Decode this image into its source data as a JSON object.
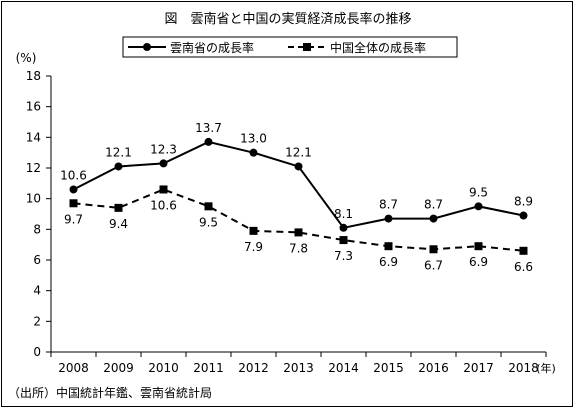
{
  "title": "図　雲南省と中国の実質経済成長率の推移",
  "source": "（出所）中国統計年鑑、雲南省統計局",
  "chart_data": {
    "type": "line",
    "title": "図　雲南省と中国の実質経済成長率の推移",
    "ylabel": "(%)",
    "xlabel": "",
    "x_unit_label": "(年)",
    "categories": [
      "2008",
      "2009",
      "2010",
      "2011",
      "2012",
      "2013",
      "2014",
      "2015",
      "2016",
      "2017",
      "2018"
    ],
    "yticks": [
      0,
      2,
      4,
      6,
      8,
      10,
      12,
      14,
      16,
      18
    ],
    "ylim": [
      0,
      18
    ],
    "grid": false,
    "legend_position": "top",
    "series": [
      {
        "name": "雲南省の成長率",
        "style": "solid-circle",
        "values": [
          10.6,
          12.1,
          12.3,
          13.7,
          13.0,
          12.1,
          8.1,
          8.7,
          8.7,
          9.5,
          8.9
        ],
        "labels": [
          "10.6",
          "12.1",
          "12.3",
          "13.7",
          "13.0",
          "12.1",
          "8.1",
          "8.7",
          "8.7",
          "9.5",
          "8.9"
        ]
      },
      {
        "name": "中国全体の成長率",
        "style": "dashed-square",
        "values": [
          9.7,
          9.4,
          10.6,
          9.5,
          7.9,
          7.8,
          7.3,
          6.9,
          6.7,
          6.9,
          6.6
        ],
        "labels": [
          "9.7",
          "9.4",
          "10.6",
          "9.5",
          "7.9",
          "7.8",
          "7.3",
          "6.9",
          "6.7",
          "6.9",
          "6.6"
        ]
      }
    ]
  }
}
